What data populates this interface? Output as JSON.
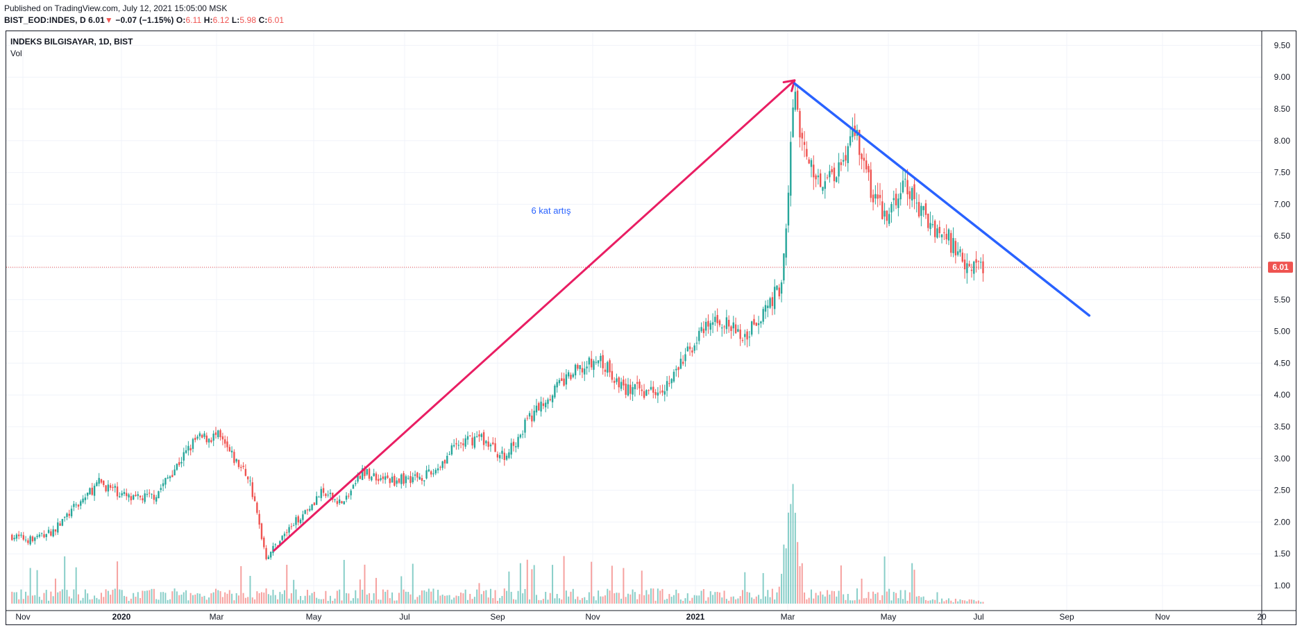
{
  "header": {
    "published": "Published on TradingView.com, July 12, 2021 15:05:00 MSK",
    "symbol": "BIST_EOD:INDES, D",
    "last": "6.01",
    "change_arrow": "▼",
    "change": "−0.07 (−1.15%)",
    "o_label": "O:",
    "o_value": "6.11",
    "h_label": "H:",
    "h_value": "6.12",
    "l_label": "L:",
    "l_value": "5.98",
    "c_label": "C:",
    "c_value": "6.01"
  },
  "pane": {
    "title": "INDEKS BILGISAYAR, 1D, BIST",
    "volume_label": "Vol"
  },
  "colors": {
    "up": "#26a69a",
    "down": "#ef5350",
    "arrow": "#e91e63",
    "trendline": "#2962ff",
    "annotation": "#2962ff",
    "grid": "#f0f3fa"
  },
  "chart_data": {
    "type": "candlestick",
    "symbol": "BIST_EOD:INDES",
    "interval": "1D",
    "y_ticks": [
      "1.00",
      "1.50",
      "2.00",
      "2.50",
      "3.00",
      "3.50",
      "4.00",
      "4.50",
      "5.00",
      "5.50",
      "6.00",
      "6.50",
      "7.00",
      "7.50",
      "8.00",
      "8.50",
      "9.00",
      "9.50"
    ],
    "x_ticks": [
      "Nov",
      "2020",
      "Mar",
      "May",
      "Jul",
      "Sep",
      "Nov",
      "2021",
      "Mar",
      "May",
      "Jul",
      "Sep",
      "Nov",
      "20"
    ],
    "last_price_label": "6.01",
    "annotation": "6 kat artış",
    "price_path": [
      [
        "2019-10-25",
        1.78
      ],
      [
        "2019-11-05",
        1.72
      ],
      [
        "2019-11-20",
        1.85
      ],
      [
        "2019-12-05",
        2.25
      ],
      [
        "2019-12-20",
        2.62
      ],
      [
        "2020-01-10",
        2.35
      ],
      [
        "2020-01-25",
        2.42
      ],
      [
        "2020-02-05",
        2.8
      ],
      [
        "2020-02-20",
        3.3
      ],
      [
        "2020-03-05",
        3.35
      ],
      [
        "2020-03-15",
        3.0
      ],
      [
        "2020-03-25",
        2.7
      ],
      [
        "2020-04-05",
        1.45
      ],
      [
        "2020-04-20",
        1.9
      ],
      [
        "2020-05-10",
        2.45
      ],
      [
        "2020-05-25",
        2.3
      ],
      [
        "2020-06-05",
        2.78
      ],
      [
        "2020-06-25",
        2.65
      ],
      [
        "2020-07-20",
        2.75
      ],
      [
        "2020-08-05",
        3.2
      ],
      [
        "2020-08-20",
        3.35
      ],
      [
        "2020-09-05",
        3.0
      ],
      [
        "2020-09-20",
        3.6
      ],
      [
        "2020-10-05",
        4.05
      ],
      [
        "2020-10-20",
        4.35
      ],
      [
        "2020-11-05",
        4.55
      ],
      [
        "2020-11-20",
        4.1
      ],
      [
        "2020-12-05",
        4.05
      ],
      [
        "2020-12-20",
        4.2
      ],
      [
        "2021-01-05",
        4.85
      ],
      [
        "2021-01-20",
        5.2
      ],
      [
        "2021-02-05",
        4.9
      ],
      [
        "2021-02-20",
        5.4
      ],
      [
        "2021-03-01",
        5.7
      ],
      [
        "2021-03-05",
        6.9
      ],
      [
        "2021-03-10",
        8.9
      ],
      [
        "2021-03-15",
        7.9
      ],
      [
        "2021-03-25",
        7.4
      ],
      [
        "2021-04-05",
        7.5
      ],
      [
        "2021-04-18",
        8.2
      ],
      [
        "2021-04-28",
        7.2
      ],
      [
        "2021-05-08",
        6.8
      ],
      [
        "2021-05-20",
        7.3
      ],
      [
        "2021-06-01",
        6.8
      ],
      [
        "2021-06-15",
        6.5
      ],
      [
        "2021-06-28",
        6.1
      ],
      [
        "2021-07-09",
        6.01
      ]
    ],
    "drawings": [
      {
        "type": "arrow",
        "from": [
          "2020-04-10",
          1.55
        ],
        "to": [
          "2021-03-10",
          8.95
        ]
      },
      {
        "type": "trendline",
        "from": [
          "2021-03-10",
          8.9
        ],
        "to": [
          "2021-09-15",
          5.25
        ]
      }
    ],
    "volume": {
      "peak_date": "2021-03-08",
      "note": "volume histogram, unlabeled"
    },
    "grid": true,
    "legend": "none"
  }
}
